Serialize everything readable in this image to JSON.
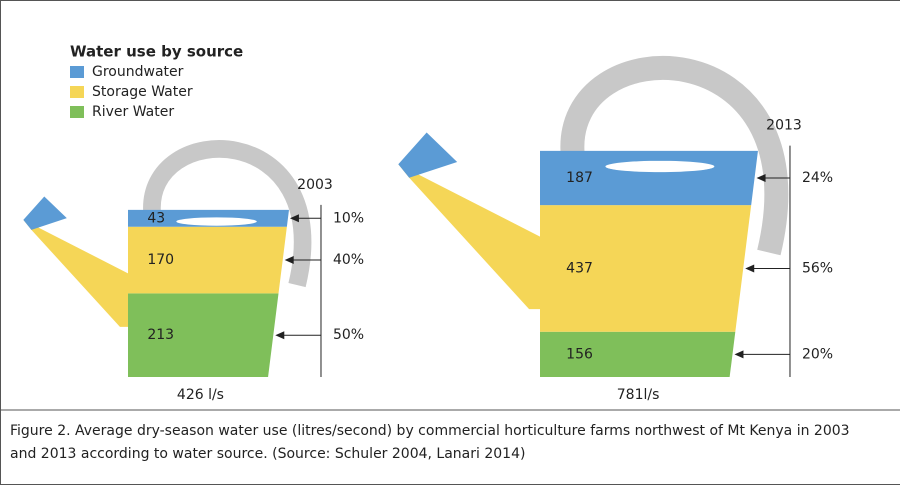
{
  "chart_data": {
    "type": "watering-can",
    "legend_title": "Water use by source",
    "categories": [
      "2003",
      "2013"
    ],
    "series": [
      {
        "name": "Groundwater",
        "color": "#5b9bd5",
        "values": [
          43,
          187
        ],
        "shares": [
          10,
          24
        ],
        "share_labels": [
          "10%",
          "24%"
        ]
      },
      {
        "name": "Storage Water",
        "color": "#f5d657",
        "values": [
          170,
          437
        ],
        "shares": [
          40,
          56
        ],
        "share_labels": [
          "40%",
          "56%"
        ]
      },
      {
        "name": "River Water",
        "color": "#7fbf5a",
        "values": [
          213,
          156
        ],
        "shares": [
          50,
          20
        ],
        "share_labels": [
          "50%",
          "20%"
        ]
      }
    ],
    "totals": [
      426,
      781
    ],
    "total_labels": [
      "426 l/s",
      "781l/s"
    ],
    "handle_color": "#c8c8c8"
  },
  "caption": "Figure 2. Average dry-season water use (litres/second) by commercial horticulture farms northwest of Mt Kenya in 2003 and 2013 according to water source. (Source: Schuler 2004, Lanari 2014)"
}
